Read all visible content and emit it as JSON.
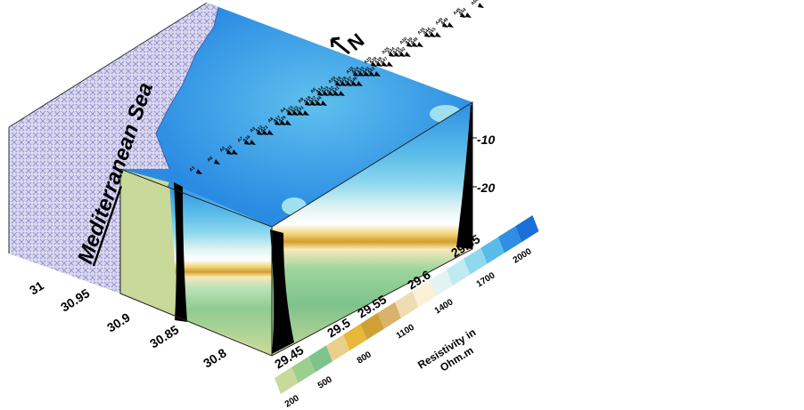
{
  "sea_label": "Mediterranean Sea",
  "sea_label_parts": [
    "Mediterr",
    "anean Sea"
  ],
  "north_label": "N",
  "depth_ticks": [
    "-10",
    "-20"
  ],
  "lat_ticks": [
    "31",
    "30.95",
    "30.9",
    "30.85",
    "30.8"
  ],
  "lon_ticks": [
    "29.45",
    "29.5",
    "29.55",
    "29.6",
    "29.65"
  ],
  "legend": {
    "title_line1": "Resistivity in",
    "title_line2": "Ohm.m",
    "values": [
      "200",
      "500",
      "800",
      "1100",
      "1400",
      "1700",
      "2000"
    ],
    "colors": [
      "#c9d99a",
      "#9ccf8e",
      "#7ec28c",
      "#e9d08a",
      "#e8b83a",
      "#cfa034",
      "#d8b36a",
      "#eedcb3",
      "#faf0d6",
      "#e2f4f2",
      "#bfeaf0",
      "#8fd8ee",
      "#58bbe8",
      "#2f8ee3",
      "#1a6fd8"
    ]
  },
  "station_labels": [
    "A1",
    "A2",
    "A3",
    "A4",
    "A5",
    "A6",
    "A7",
    "A8",
    "A9",
    "A10",
    "A11",
    "A12",
    "A13",
    "A14",
    "A15",
    "A16",
    "A17",
    "A18",
    "A19",
    "A20",
    "A21",
    "A22",
    "A23",
    "A24",
    "A25",
    "A26",
    "A27",
    "A28",
    "A29",
    "A30",
    "A31",
    "A32",
    "A33",
    "A34",
    "A35",
    "A36",
    "A37",
    "A38",
    "A39",
    "A40",
    "A41",
    "A42",
    "A43",
    "A44",
    "A45",
    "A46",
    "A47",
    "A48",
    "A49",
    "A50",
    "A51",
    "A52",
    "A53",
    "A54",
    "A55"
  ]
}
